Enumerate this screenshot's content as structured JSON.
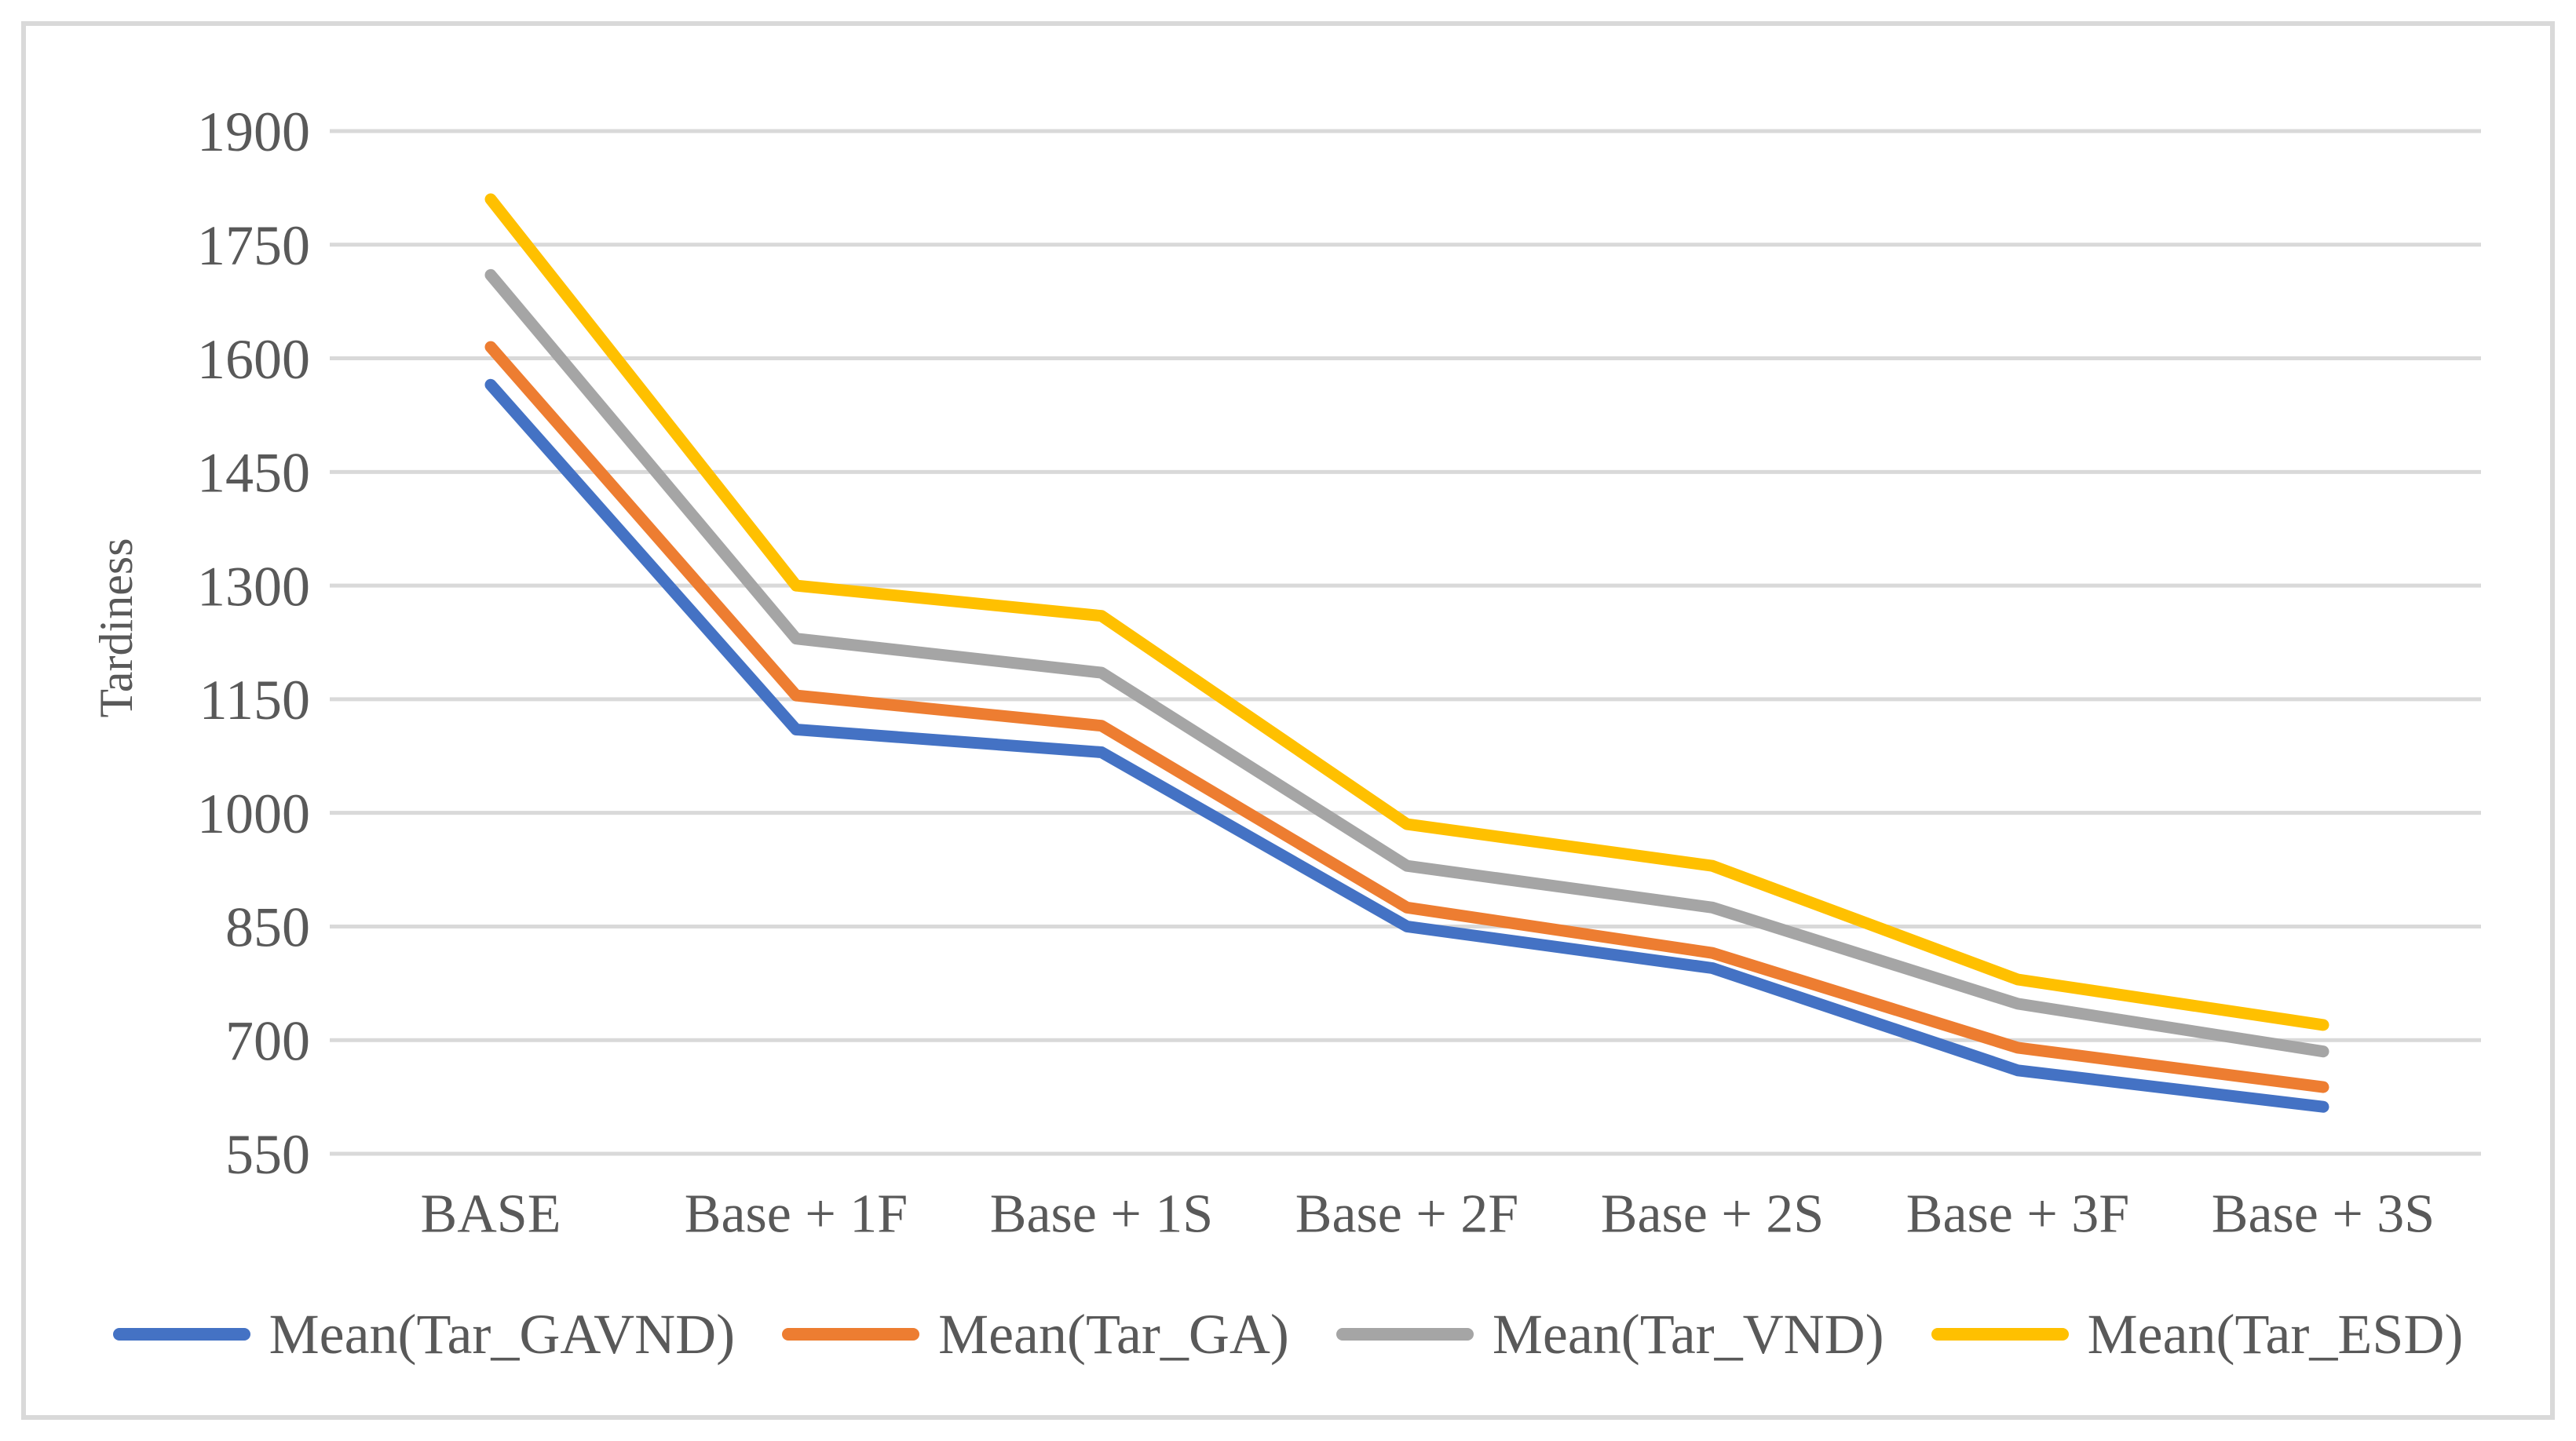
{
  "page": {
    "background": "#FFFFFF",
    "border_color": "#D9D9D9",
    "grid_color": "#D9D9D9",
    "text_color": "#595959"
  },
  "chart_data": {
    "type": "line",
    "title": "",
    "ylabel": "Tardiness",
    "xlabel": "",
    "categories": [
      "BASE",
      "Base + 1F",
      "Base + 1S",
      "Base + 2F",
      "Base + 2S",
      "Base + 3F",
      "Base + 3S"
    ],
    "series": [
      {
        "name": "Mean(Tar_GAVND)",
        "color": "#4472C4",
        "values": [
          1565,
          1110,
          1080,
          850,
          795,
          660,
          612
        ]
      },
      {
        "name": "Mean(Tar_GA)",
        "color": "#ED7D31",
        "values": [
          1615,
          1155,
          1115,
          875,
          815,
          690,
          638
        ]
      },
      {
        "name": "Mean(Tar_VND)",
        "color": "#A5A5A5",
        "values": [
          1710,
          1230,
          1185,
          930,
          875,
          748,
          685
        ]
      },
      {
        "name": "Mean(Tar_ESD)",
        "color": "#FFC000",
        "values": [
          1810,
          1300,
          1260,
          985,
          930,
          780,
          720
        ]
      }
    ],
    "y_ticks": [
      1900,
      1750,
      1600,
      1450,
      1300,
      1150,
      1000,
      850,
      700,
      550
    ],
    "ylim": [
      550,
      1900
    ],
    "grid": true,
    "legend_position": "bottom"
  }
}
